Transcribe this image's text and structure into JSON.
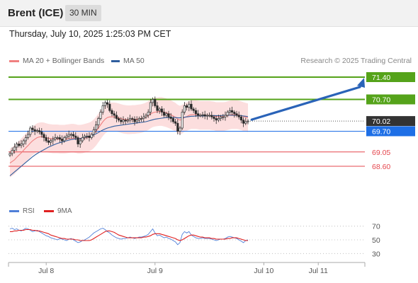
{
  "header": {
    "symbol": "Brent (ICE)",
    "interval": "30 MIN"
  },
  "timestamp": "Thursday, July 10, 2025 1:25:03 PM CET",
  "legend": {
    "ma20_label": "MA 20 + Bollinger Bands",
    "ma50_label": "MA 50",
    "credit": "Research © 2025 Trading Central",
    "rsi_label": "RSI",
    "rsi_ma_label": "9MA"
  },
  "colors": {
    "green": "#55a31a",
    "blue": "#1e6fe6",
    "red": "#e5474e",
    "dark": "#333333",
    "ma20": "#f08080",
    "ma50": "#2f5e9e",
    "band": "#fbd8d8",
    "rsi": "#4f7fd8",
    "rsi_ma": "#e02020"
  },
  "chart_data": {
    "type": "candlestick",
    "instrument": "Brent (ICE)",
    "timeframe": "30 MIN",
    "levels": [
      {
        "value": 71.4,
        "label": "71.40",
        "kind": "resistance",
        "color": "#55a31a"
      },
      {
        "value": 70.7,
        "label": "70.70",
        "kind": "resistance",
        "color": "#55a31a"
      },
      {
        "value": 70.02,
        "label": "70.02",
        "kind": "last-price",
        "color": "#333333"
      },
      {
        "value": 69.7,
        "label": "69.70",
        "kind": "pivot",
        "color": "#1e6fe6"
      },
      {
        "value": 69.05,
        "label": "69.05",
        "kind": "support",
        "color": "#e5474e"
      },
      {
        "value": 68.6,
        "label": "68.60",
        "kind": "support",
        "color": "#e5474e"
      }
    ],
    "price_range": [
      67.6,
      71.6
    ],
    "x_ticks": [
      "Jul 8",
      "Jul 9",
      "Jul 10",
      "Jul 11"
    ],
    "x_tick_index": [
      16,
      64,
      112,
      136
    ],
    "close": [
      69.0,
      69.1,
      69.2,
      69.3,
      69.25,
      69.3,
      69.4,
      69.5,
      69.6,
      69.8,
      69.75,
      69.7,
      69.72,
      69.68,
      69.6,
      69.5,
      69.4,
      69.35,
      69.4,
      69.45,
      69.5,
      69.5,
      69.45,
      69.4,
      69.5,
      69.55,
      69.6,
      69.6,
      69.55,
      69.5,
      69.3,
      69.4,
      69.5,
      69.55,
      69.55,
      69.5,
      69.6,
      69.75,
      69.9,
      70.1,
      70.3,
      70.5,
      70.6,
      70.55,
      70.35,
      70.25,
      70.2,
      70.1,
      70.05,
      70.0,
      70.05,
      70.02,
      70.05,
      70.1,
      70.08,
      70.0,
      70.05,
      70.1,
      70.1,
      70.15,
      70.2,
      70.3,
      70.6,
      70.7,
      70.5,
      70.35,
      70.4,
      70.3,
      70.2,
      70.25,
      70.15,
      70.1,
      70.0,
      69.95,
      69.7,
      69.8,
      70.3,
      70.5,
      70.45,
      70.55,
      70.4,
      70.35,
      70.25,
      70.2,
      70.2,
      70.22,
      70.18,
      70.2,
      70.2,
      70.15,
      70.1,
      70.05,
      70.1,
      70.15,
      70.15,
      70.2,
      70.3,
      70.35,
      70.3,
      70.25,
      70.2,
      70.15,
      70.05,
      69.95,
      70.0,
      70.02
    ],
    "ma20": [
      68.7,
      68.75,
      68.8,
      68.88,
      68.95,
      69.02,
      69.1,
      69.18,
      69.25,
      69.33,
      69.4,
      69.45,
      69.5,
      69.52,
      69.53,
      69.52,
      69.5,
      69.48,
      69.47,
      69.46,
      69.46,
      69.46,
      69.45,
      69.45,
      69.45,
      69.46,
      69.47,
      69.48,
      69.48,
      69.47,
      69.45,
      69.45,
      69.46,
      69.48,
      69.5,
      69.52,
      69.56,
      69.62,
      69.7,
      69.8,
      69.9,
      70.0,
      70.08,
      70.13,
      70.15,
      70.15,
      70.15,
      70.14,
      70.12,
      70.1,
      70.08,
      70.07,
      70.06,
      70.06,
      70.07,
      70.07,
      70.08,
      70.09,
      70.1,
      70.12,
      70.15,
      70.19,
      70.24,
      70.28,
      70.3,
      70.31,
      70.32,
      70.32,
      70.3,
      70.28,
      70.25,
      70.22,
      70.18,
      70.14,
      70.08,
      70.05,
      70.08,
      70.13,
      70.16,
      70.2,
      70.22,
      70.22,
      70.22,
      70.21,
      70.2,
      70.2,
      70.2,
      70.2,
      70.2,
      70.19,
      70.18,
      70.16,
      70.16,
      70.16,
      70.16,
      70.17,
      70.19,
      70.21,
      70.22,
      70.22,
      70.22,
      70.21,
      70.19,
      70.16,
      70.14,
      70.12
    ],
    "ma50": [
      68.3,
      68.36,
      68.42,
      68.48,
      68.54,
      68.6,
      68.66,
      68.72,
      68.78,
      68.84,
      68.9,
      68.95,
      69.0,
      69.04,
      69.08,
      69.12,
      69.16,
      69.2,
      69.23,
      69.26,
      69.29,
      69.32,
      69.34,
      69.36,
      69.38,
      69.4,
      69.42,
      69.44,
      69.45,
      69.46,
      69.46,
      69.47,
      69.48,
      69.5,
      69.52,
      69.54,
      69.56,
      69.59,
      69.62,
      69.66,
      69.7,
      69.74,
      69.77,
      69.8,
      69.82,
      69.84,
      69.86,
      69.87,
      69.88,
      69.89,
      69.9,
      69.91,
      69.92,
      69.93,
      69.94,
      69.95,
      69.96,
      69.97,
      69.98,
      69.99,
      70.0,
      70.02,
      70.04,
      70.06,
      70.08,
      70.09,
      70.1,
      70.11,
      70.12,
      70.13,
      70.13,
      70.13,
      70.13,
      70.13,
      70.12,
      70.12,
      70.13,
      70.14,
      70.15,
      70.16,
      70.17,
      70.17,
      70.18,
      70.18,
      70.18,
      70.18,
      70.18,
      70.18,
      70.19,
      70.19,
      70.19,
      70.19,
      70.19,
      70.19,
      70.2,
      70.2,
      70.2,
      70.2,
      70.2,
      70.2,
      70.2,
      70.2,
      70.19,
      70.18,
      70.17,
      70.16
    ],
    "band_width": 0.45,
    "projection": {
      "from_index": 106,
      "from_value": 70.02,
      "to_value": 71.4
    },
    "rsi": {
      "ticks": [
        70,
        50,
        30
      ],
      "range": [
        20,
        80
      ],
      "values": [
        66,
        67,
        65,
        66,
        64,
        63,
        65,
        67,
        66,
        64,
        62,
        63,
        64,
        62,
        60,
        58,
        56,
        55,
        53,
        52,
        51,
        50,
        52,
        51,
        50,
        49,
        51,
        52,
        50,
        48,
        46,
        47,
        49,
        50,
        52,
        54,
        57,
        60,
        62,
        64,
        66,
        67,
        65,
        62,
        60,
        57,
        55,
        53,
        52,
        51,
        52,
        52,
        53,
        54,
        53,
        52,
        53,
        54,
        54,
        55,
        56,
        58,
        62,
        66,
        60,
        56,
        57,
        55,
        53,
        54,
        52,
        51,
        49,
        47,
        43,
        46,
        58,
        62,
        60,
        62,
        57,
        55,
        53,
        52,
        52,
        53,
        52,
        52,
        52,
        51,
        50,
        49,
        50,
        51,
        51,
        52,
        54,
        55,
        54,
        53,
        52,
        50,
        48,
        46,
        49,
        50
      ],
      "ma": [
        62,
        62,
        63,
        63,
        64,
        64,
        64,
        65,
        65,
        65,
        64,
        64,
        63,
        63,
        62,
        61,
        60,
        59,
        57,
        56,
        55,
        54,
        53,
        52,
        52,
        51,
        51,
        51,
        51,
        50,
        50,
        49,
        49,
        49,
        49,
        49,
        50,
        52,
        54,
        56,
        58,
        60,
        62,
        63,
        63,
        62,
        61,
        59,
        57,
        56,
        55,
        54,
        53,
        53,
        53,
        53,
        53,
        53,
        53,
        54,
        54,
        55,
        56,
        58,
        59,
        59,
        59,
        58,
        57,
        56,
        55,
        54,
        53,
        52,
        50,
        49,
        50,
        52,
        54,
        56,
        57,
        57,
        56,
        55,
        54,
        54,
        53,
        53,
        53,
        52,
        52,
        51,
        51,
        51,
        51,
        51,
        52,
        52,
        53,
        53,
        53,
        52,
        51,
        50,
        49,
        49
      ]
    }
  }
}
